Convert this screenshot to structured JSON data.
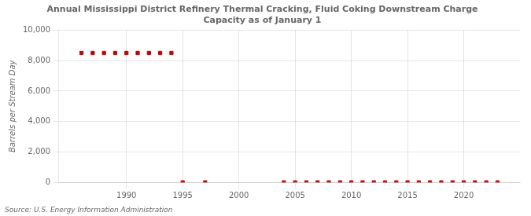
{
  "chart_data": {
    "type": "scatter",
    "title": "Annual Mississippi District Refinery Thermal Cracking, Fluid Coking Downstream Charge\nCapacity as of January 1",
    "ylabel": "Barrels per Stream Day",
    "annotations": [
      "Source: U.S. Energy Information Administration"
    ],
    "x": [
      1986,
      1987,
      1988,
      1989,
      1990,
      1991,
      1992,
      1993,
      1994,
      1995,
      1997,
      2004,
      2005,
      2006,
      2007,
      2008,
      2009,
      2010,
      2011,
      2012,
      2013,
      2014,
      2015,
      2016,
      2017,
      2018,
      2019,
      2020,
      2021,
      2022,
      2023
    ],
    "values": [
      8500,
      8500,
      8500,
      8500,
      8500,
      8500,
      8500,
      8500,
      8500,
      0,
      0,
      0,
      0,
      0,
      0,
      0,
      0,
      0,
      0,
      0,
      0,
      0,
      0,
      0,
      0,
      0,
      0,
      0,
      0,
      0,
      0
    ],
    "color": "#cc0000",
    "marker": "square",
    "xlim": [
      1984,
      2025
    ],
    "xticks": [
      1990,
      1995,
      2000,
      2005,
      2010,
      2015,
      2020
    ],
    "ylim": [
      0,
      10000
    ],
    "yticks": [
      0,
      {
        "value": 2000,
        "label": "2,000"
      },
      {
        "value": 4000,
        "label": "4,000"
      },
      {
        "value": 6000,
        "label": "6,000"
      },
      {
        "value": 8000,
        "label": "8,000"
      },
      {
        "value": 10000,
        "label": "10,000"
      }
    ],
    "grid": true
  }
}
